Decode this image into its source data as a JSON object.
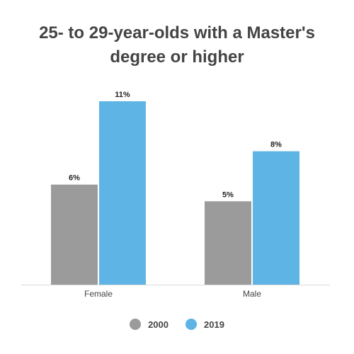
{
  "chart_data": {
    "type": "bar",
    "title_lines": [
      "25- to 29-year-olds with a Master's",
      "degree or higher"
    ],
    "categories": [
      "Female",
      "Male"
    ],
    "series": [
      {
        "name": "2000",
        "values": [
          6,
          5
        ],
        "color": "#9b9b9b"
      },
      {
        "name": "2019",
        "values": [
          11,
          8
        ],
        "color": "#5db4e5"
      }
    ],
    "data_labels": [
      [
        "6%",
        "5%"
      ],
      [
        "11%",
        "8%"
      ]
    ],
    "value_suffix": "%",
    "ylim": [
      0,
      11
    ],
    "grid": false,
    "legend_position": "bottom"
  }
}
